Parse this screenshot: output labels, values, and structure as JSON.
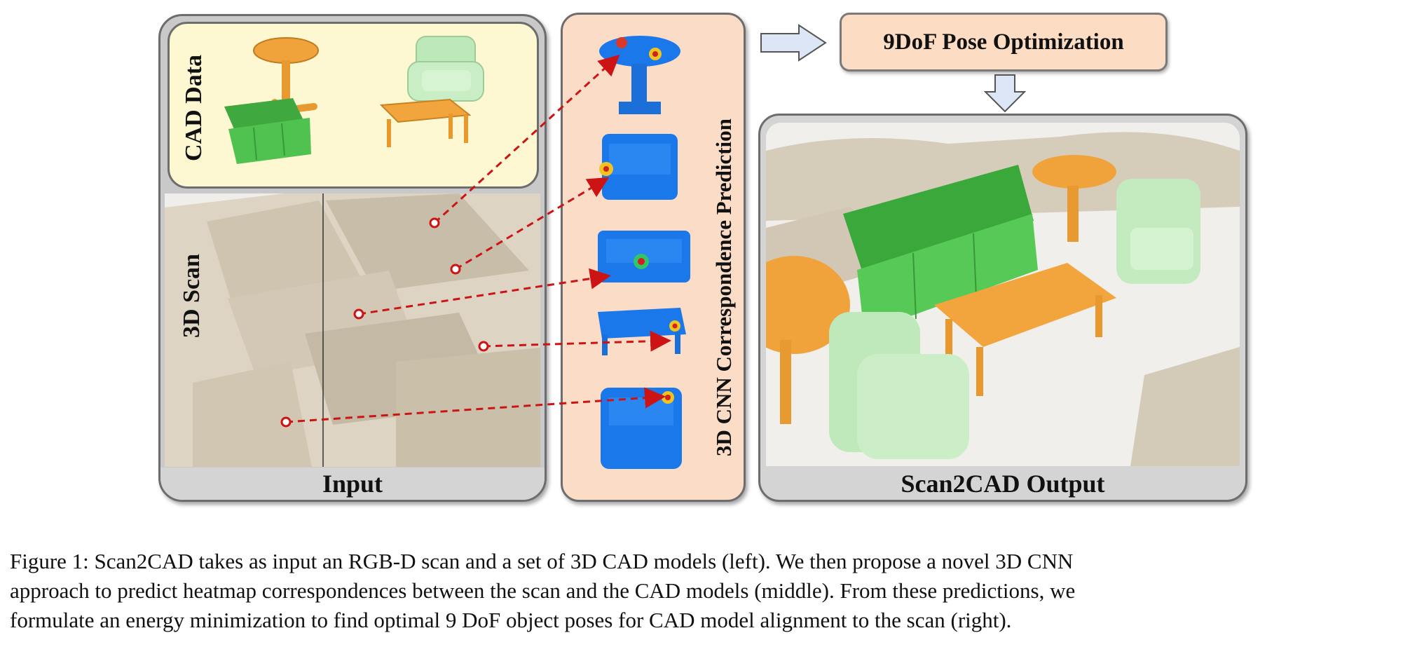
{
  "input_panel": {
    "title": "Input",
    "cad_label": "CAD Data",
    "scan_label": "3D Scan"
  },
  "middle_panel": {
    "title": "3D CNN Correspondence Prediction"
  },
  "pose_box": {
    "label": "9DoF Pose Optimization"
  },
  "output_panel": {
    "title": "Scan2CAD Output"
  },
  "caption": {
    "lines": [
      "Figure 1: Scan2CAD takes as input an RGB-D scan and a set of 3D CAD models (left). We then propose a novel 3D CNN",
      "approach to predict heatmap correspondences between the scan and the CAD models (middle). From these predictions, we",
      "formulate an energy minimization to find optimal 9 DoF object poses for CAD model alignment to the scan (right)."
    ]
  },
  "colors": {
    "cad_panel": "#fdf8d2",
    "correspondence_panel": "#fbdcc6",
    "pose_box": "#fcdcc2",
    "scan": "#cfc4b0",
    "cad_orange": "#f0a33a",
    "cad_green": "#4fc24f",
    "cad_light_green": "#bde8b9",
    "heatmap_blue": "#1a78ea",
    "arrow": "#cc1414",
    "flow_arrow": "#dce6f6"
  }
}
